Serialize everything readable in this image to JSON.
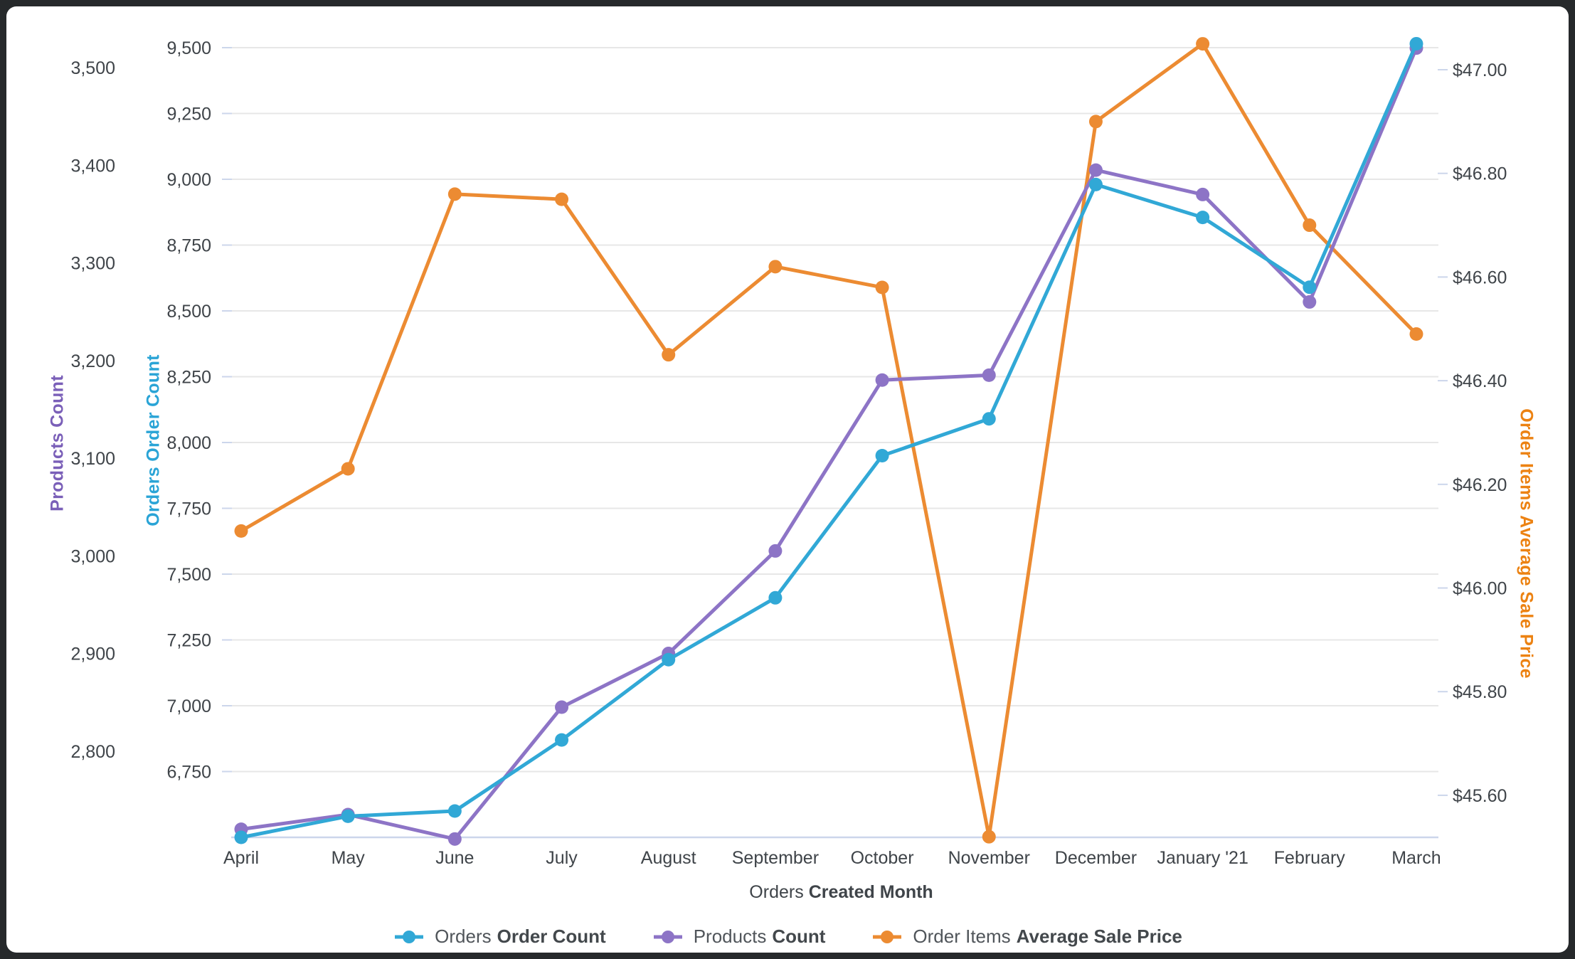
{
  "chart_data": {
    "type": "line",
    "title": "",
    "x_categories": [
      "April",
      "May",
      "June",
      "July",
      "August",
      "September",
      "October",
      "November",
      "December",
      "January '21",
      "February",
      "March"
    ],
    "xlabel_regular": "Orders",
    "xlabel_bold": "Created Month",
    "grid": "horizontal-only",
    "legend_position": "bottom-center",
    "series": [
      {
        "name_regular": "Order Items",
        "name_bold": "Average Sale Price",
        "axis": "price",
        "color": "#ec8b32",
        "values": [
          46.11,
          46.23,
          46.76,
          46.75,
          46.45,
          46.62,
          46.58,
          45.52,
          46.9,
          47.05,
          46.7,
          46.49
        ]
      },
      {
        "name_regular": "Products",
        "name_bold": "Count",
        "axis": "products",
        "color": "#8d74c6",
        "values": [
          2720,
          2735,
          2710,
          2845,
          2900,
          3005,
          3180,
          3185,
          3395,
          3370,
          3260,
          3520
        ]
      },
      {
        "name_regular": "Orders",
        "name_bold": "Order Count",
        "axis": "orders",
        "color": "#31a8d6",
        "values": [
          6500,
          6580,
          6600,
          6870,
          7175,
          7410,
          7950,
          8090,
          8980,
          8855,
          8590,
          9515
        ]
      }
    ],
    "legend_order": [
      "orders",
      "products",
      "price"
    ],
    "axes": {
      "products": {
        "title": "Products Count",
        "color": "#7a5fb8",
        "side": "left-outer",
        "tick_labels": [
          "3,500",
          "3,400",
          "3,300",
          "3,200",
          "3,100",
          "3,000",
          "2,900",
          "2,800"
        ],
        "tick_values": [
          3500,
          3400,
          3300,
          3200,
          3100,
          3000,
          2900,
          2800
        ]
      },
      "orders": {
        "title": "Orders Order Count",
        "color": "#2aa4d6",
        "side": "left-inner",
        "tick_labels": [
          "9,500",
          "9,250",
          "9,000",
          "8,750",
          "8,500",
          "8,250",
          "8,000",
          "7,750",
          "7,500",
          "7,250",
          "7,000",
          "6,750"
        ],
        "tick_values": [
          9500,
          9250,
          9000,
          8750,
          8500,
          8250,
          8000,
          7750,
          7500,
          7250,
          7000,
          6750
        ]
      },
      "price": {
        "title": "Order Items Average Sale Price",
        "color": "#ec8212",
        "side": "right",
        "tick_labels": [
          "$47.00",
          "$46.80",
          "$46.60",
          "$46.40",
          "$46.20",
          "$46.00",
          "$45.80",
          "$45.60"
        ],
        "tick_values": [
          47.0,
          46.8,
          46.6,
          46.4,
          46.2,
          46.0,
          45.8,
          45.6
        ]
      }
    },
    "colors": {
      "gridline": "#e7e7e7",
      "axis_line": "#ccd6eb",
      "tick_text": "#3f4449"
    }
  }
}
